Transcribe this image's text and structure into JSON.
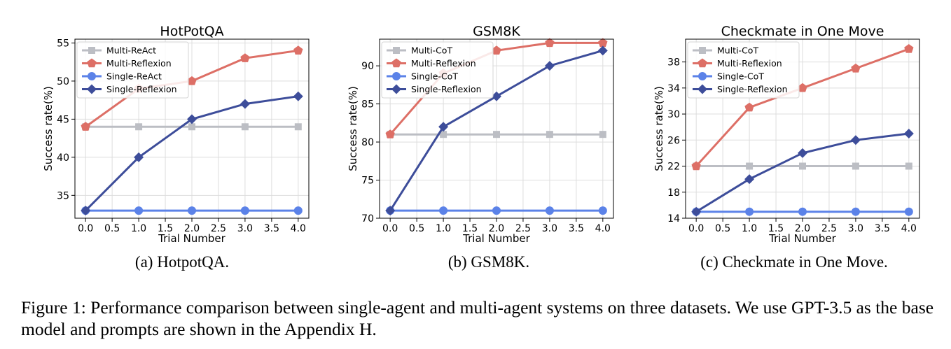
{
  "figure": {
    "caption": "Figure 1: Performance comparison between single-agent and multi-agent systems on three datasets. We use GPT-3.5 as the base model and prompts are shown in the Appendix H.",
    "subcaptions": [
      "(a) HotpotQA.",
      "(b) GSM8K.",
      "(c) Checkmate in One Move."
    ]
  },
  "chart_data": [
    {
      "type": "line",
      "title": "HotPotQA",
      "xlabel": "Trial Number",
      "ylabel": "Success rate(%)",
      "xlim": [
        -0.2,
        4.2
      ],
      "ylim": [
        32.0,
        55.5
      ],
      "xticks": [
        0.0,
        0.5,
        1.0,
        1.5,
        2.0,
        2.5,
        3.0,
        3.5,
        4.0
      ],
      "xtick_labels": [
        "0.0",
        "0.5",
        "1.0",
        "1.5",
        "2.0",
        "2.5",
        "3.0",
        "3.5",
        "4.0"
      ],
      "yticks": [
        35,
        40,
        45,
        50,
        55
      ],
      "ytick_labels": [
        "35",
        "40",
        "45",
        "50",
        "55"
      ],
      "grid": true,
      "legend_position": "top-left",
      "x": [
        0,
        1,
        2,
        3,
        4
      ],
      "series": [
        {
          "name": "Multi-ReAct",
          "values": [
            44,
            44,
            44,
            44,
            44
          ],
          "color": "#bcbec4",
          "marker": "square"
        },
        {
          "name": "Multi-Reflexion",
          "values": [
            44,
            49,
            50,
            53,
            54
          ],
          "color": "#dd6f66",
          "marker": "pentagon"
        },
        {
          "name": "Single-ReAct",
          "values": [
            33,
            33,
            33,
            33,
            33
          ],
          "color": "#5b82e8",
          "marker": "circle"
        },
        {
          "name": "Single-Reflexion",
          "values": [
            33,
            40,
            45,
            47,
            48
          ],
          "color": "#3d4d9a",
          "marker": "diamond"
        }
      ]
    },
    {
      "type": "line",
      "title": "GSM8K",
      "xlabel": "Trial Number",
      "ylabel": "Success rate(%)",
      "xlim": [
        -0.2,
        4.2
      ],
      "ylim": [
        70.0,
        93.5
      ],
      "xticks": [
        0.0,
        0.5,
        1.0,
        1.5,
        2.0,
        2.5,
        3.0,
        3.5,
        4.0
      ],
      "xtick_labels": [
        "0.0",
        "0.5",
        "1.0",
        "1.5",
        "2.0",
        "2.5",
        "3.0",
        "3.5",
        "4.0"
      ],
      "yticks": [
        70,
        75,
        80,
        85,
        90
      ],
      "ytick_labels": [
        "70",
        "75",
        "80",
        "85",
        "90"
      ],
      "grid": true,
      "legend_position": "top-left",
      "x": [
        0,
        1,
        2,
        3,
        4
      ],
      "series": [
        {
          "name": "Multi-CoT",
          "values": [
            81,
            81,
            81,
            81,
            81
          ],
          "color": "#bcbec4",
          "marker": "square"
        },
        {
          "name": "Multi-Reflexion",
          "values": [
            81,
            89,
            92,
            93,
            93
          ],
          "color": "#dd6f66",
          "marker": "pentagon"
        },
        {
          "name": "Single-CoT",
          "values": [
            71,
            71,
            71,
            71,
            71
          ],
          "color": "#5b82e8",
          "marker": "circle"
        },
        {
          "name": "Single-Reflexion",
          "values": [
            71,
            82,
            86,
            90,
            92
          ],
          "color": "#3d4d9a",
          "marker": "diamond"
        }
      ]
    },
    {
      "type": "line",
      "title": "Checkmate in One Move",
      "xlabel": "Trial Number",
      "ylabel": "Success rate(%)",
      "xlim": [
        -0.2,
        4.2
      ],
      "ylim": [
        14.0,
        41.5
      ],
      "xticks": [
        0.0,
        0.5,
        1.0,
        1.5,
        2.0,
        2.5,
        3.0,
        3.5,
        4.0
      ],
      "xtick_labels": [
        "0.0",
        "0.5",
        "1.0",
        "1.5",
        "2.0",
        "2.5",
        "3.0",
        "3.5",
        "4.0"
      ],
      "yticks": [
        14,
        18,
        22,
        26,
        30,
        34,
        38
      ],
      "ytick_labels": [
        "14",
        "18",
        "22",
        "26",
        "30",
        "34",
        "38"
      ],
      "grid": true,
      "legend_position": "top-left",
      "x": [
        0,
        1,
        2,
        3,
        4
      ],
      "series": [
        {
          "name": "Multi-CoT",
          "values": [
            22,
            22,
            22,
            22,
            22
          ],
          "color": "#bcbec4",
          "marker": "square"
        },
        {
          "name": "Multi-Reflexion",
          "values": [
            22,
            31,
            34,
            37,
            40
          ],
          "color": "#dd6f66",
          "marker": "pentagon"
        },
        {
          "name": "Single-CoT",
          "values": [
            15,
            15,
            15,
            15,
            15
          ],
          "color": "#5b82e8",
          "marker": "circle"
        },
        {
          "name": "Single-Reflexion",
          "values": [
            15,
            20,
            24,
            26,
            27
          ],
          "color": "#3d4d9a",
          "marker": "diamond"
        }
      ]
    }
  ]
}
